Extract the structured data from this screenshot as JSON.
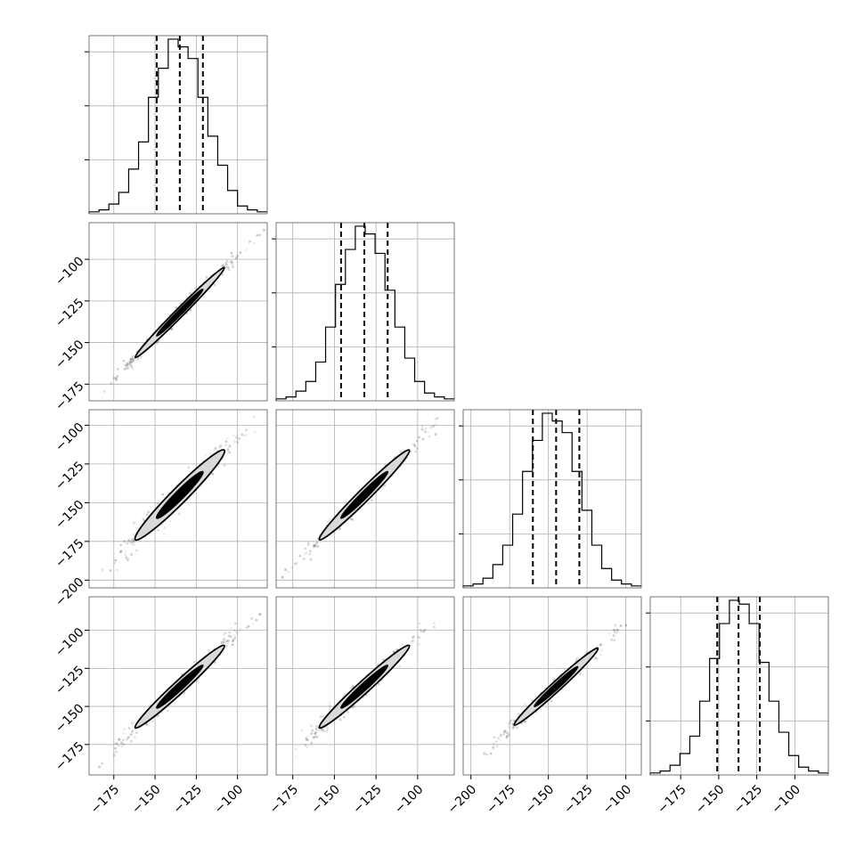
{
  "chart_data": {
    "type": "scatter",
    "title": "",
    "layout": "corner",
    "n_params": 4,
    "grid": true,
    "colors": {
      "line": "#000000",
      "grid": "#b0b0b0",
      "fill": "#d9d9d9",
      "points": "#555555"
    },
    "params": [
      {
        "range": [
          -190,
          -82
        ],
        "median": -135,
        "q16": -149,
        "q84": -121,
        "ticks": [
          -175,
          -150,
          -125,
          -100
        ]
      },
      {
        "range": [
          -185,
          -78
        ],
        "median": -132,
        "q16": -146,
        "q84": -118,
        "ticks": [
          -175,
          -150,
          -125,
          -100
        ]
      },
      {
        "range": [
          -205,
          -90
        ],
        "median": -145,
        "q16": -160,
        "q84": -130,
        "ticks": [
          -200,
          -175,
          -150,
          -125,
          -100
        ]
      },
      {
        "range": [
          -195,
          -78
        ],
        "median": -137,
        "q16": -151,
        "q84": -123,
        "ticks": [
          -175,
          -150,
          -125,
          -100
        ]
      }
    ],
    "histograms": [
      [
        1,
        2,
        5,
        11,
        23,
        37,
        60,
        75,
        90,
        86,
        80,
        60,
        40,
        25,
        12,
        4,
        2,
        1
      ],
      [
        1,
        2,
        5,
        10,
        20,
        38,
        60,
        78,
        90,
        86,
        76,
        57,
        38,
        22,
        10,
        4,
        2,
        1
      ],
      [
        1,
        2,
        5,
        12,
        22,
        38,
        60,
        76,
        90,
        86,
        80,
        60,
        40,
        22,
        10,
        4,
        2,
        1
      ],
      [
        1,
        2,
        5,
        11,
        20,
        38,
        60,
        78,
        90,
        88,
        78,
        58,
        38,
        22,
        10,
        4,
        2,
        1
      ]
    ],
    "pairs": [
      {
        "row": 1,
        "col": 0,
        "width": 3.5
      },
      {
        "row": 2,
        "col": 0,
        "width": 6.5
      },
      {
        "row": 2,
        "col": 1,
        "width": 5.0
      },
      {
        "row": 3,
        "col": 0,
        "width": 5.0
      },
      {
        "row": 3,
        "col": 1,
        "width": 5.0
      },
      {
        "row": 3,
        "col": 2,
        "width": 4.0
      }
    ]
  }
}
